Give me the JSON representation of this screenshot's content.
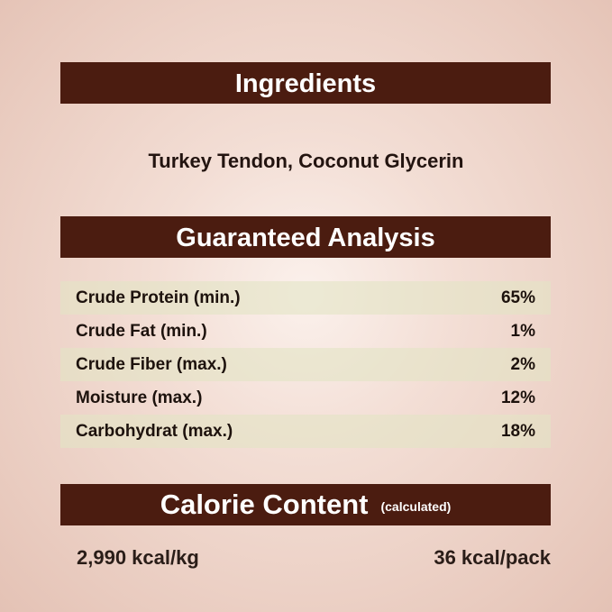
{
  "ingredients": {
    "title": "Ingredients",
    "text": "Turkey Tendon, Coconut Glycerin"
  },
  "analysis": {
    "title": "Guaranteed Analysis",
    "rows": [
      {
        "label": "Crude Protein (min.)",
        "value": "65%"
      },
      {
        "label": "Crude Fat (min.)",
        "value": "1%"
      },
      {
        "label": "Crude Fiber (max.)",
        "value": "2%"
      },
      {
        "label": "Moisture (max.)",
        "value": "12%"
      },
      {
        "label": "Carbohydrat (max.)",
        "value": "18%"
      }
    ]
  },
  "calorie": {
    "title": "Calorie Content",
    "note": "(calculated)",
    "per_kg": "2,990 kcal/kg",
    "per_pack": "36 kcal/pack"
  },
  "colors": {
    "header": "#4b1c10",
    "row_shade": "#e2e4c4",
    "background": "#ecd3c8"
  }
}
